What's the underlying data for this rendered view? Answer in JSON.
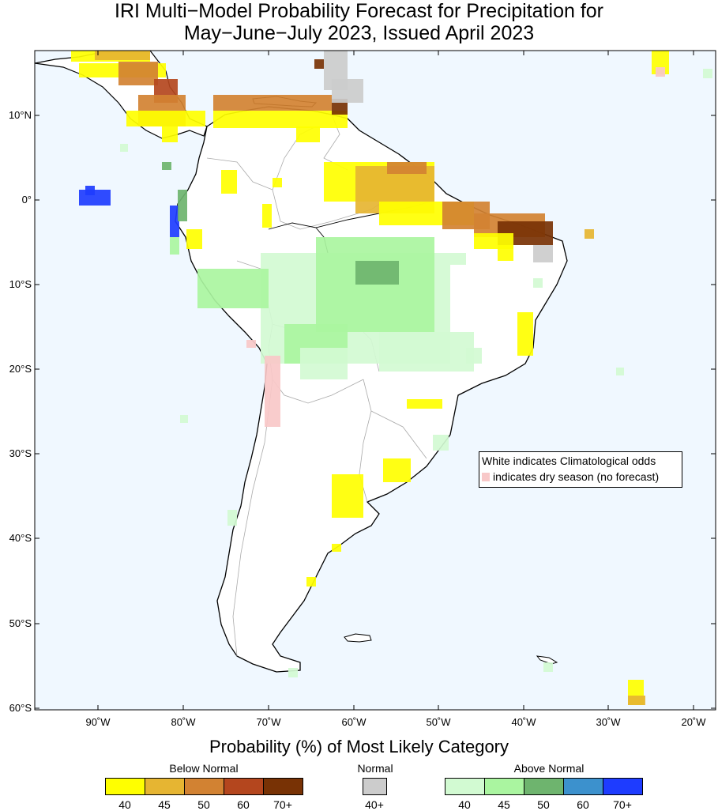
{
  "title_line1": "IRI Multi−Model Probability Forecast for Precipitation for",
  "title_line2": "May−June−July 2023, Issued April 2023",
  "map": {
    "lat_labels": [
      "10°N",
      "0°",
      "10°S",
      "20°S",
      "30°S",
      "40°S",
      "50°S",
      "60°S"
    ],
    "lon_labels": [
      "90˚W",
      "80˚W",
      "70˚W",
      "60˚W",
      "50˚W",
      "40˚W",
      "30˚W",
      "20˚W"
    ],
    "ocean_color": "#f0f8ff",
    "land_color": "#ffffff",
    "note_line1": "White indicates Climatological odds",
    "note_line2": "indicates dry season (no forecast)",
    "dry_season_color": "#f8c8c8"
  },
  "legend": {
    "title": "Probability (%) of Most Likely Category",
    "below_normal": {
      "label": "Below Normal",
      "ticks": [
        "40",
        "45",
        "50",
        "60",
        "70+"
      ],
      "colors": [
        "#ffff00",
        "#e6b532",
        "#d28232",
        "#b4461e",
        "#783205"
      ]
    },
    "normal": {
      "label": "Normal",
      "ticks": [
        "40+"
      ],
      "colors": [
        "#cccccc"
      ]
    },
    "above_normal": {
      "label": "Above Normal",
      "ticks": [
        "40",
        "45",
        "50",
        "60",
        "70+"
      ],
      "colors": [
        "#d2fad2",
        "#aaf5a0",
        "#6eb46e",
        "#3c91cd",
        "#1e3cff"
      ]
    }
  }
}
